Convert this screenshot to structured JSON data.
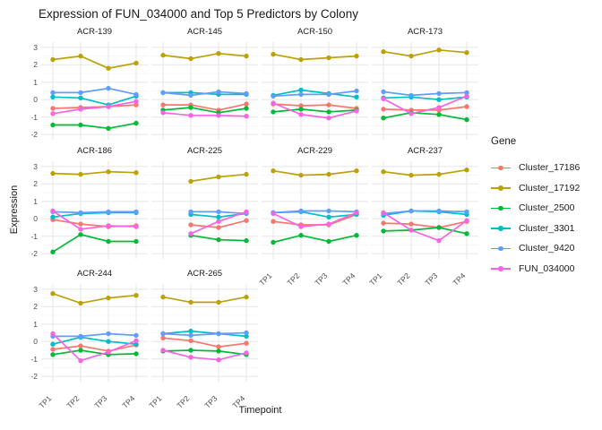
{
  "chart_data": {
    "type": "line",
    "title": "Expression of FUN_034000 and Top 5 Predictors by Colony",
    "xlabel": "Timepoint",
    "ylabel": "Expression",
    "legend_title": "Gene",
    "x": [
      "TP1",
      "TP2",
      "TP3",
      "TP4"
    ],
    "yticks": [
      3,
      2,
      1,
      0,
      -1,
      -2
    ],
    "ylim": [
      -2.3,
      3.3
    ],
    "grid": true,
    "legend_position": "right",
    "series_meta": [
      {
        "name": "Cluster_17186",
        "color": "#F8766D"
      },
      {
        "name": "Cluster_17192",
        "color": "#BCA20A"
      },
      {
        "name": "Cluster_2500",
        "color": "#00BA38"
      },
      {
        "name": "Cluster_3301",
        "color": "#00BFC4"
      },
      {
        "name": "Cluster_9420",
        "color": "#619CFF"
      },
      {
        "name": "FUN_034000",
        "color": "#F564E3"
      }
    ],
    "facets": [
      {
        "colony": "ACR-139",
        "series": {
          "Cluster_17186": [
            -0.5,
            -0.45,
            -0.4,
            -0.3
          ],
          "Cluster_17192": [
            2.3,
            2.5,
            1.8,
            2.1
          ],
          "Cluster_2500": [
            -1.45,
            -1.45,
            -1.65,
            -1.35
          ],
          "Cluster_3301": [
            0.15,
            0.1,
            -0.3,
            0.2
          ],
          "Cluster_9420": [
            0.4,
            0.4,
            0.65,
            0.3
          ],
          "FUN_034000": [
            -0.8,
            -0.55,
            -0.4,
            -0.1
          ]
        }
      },
      {
        "colony": "ACR-145",
        "series": {
          "Cluster_17186": [
            -0.3,
            -0.3,
            -0.6,
            -0.25
          ],
          "Cluster_17192": [
            2.55,
            2.35,
            2.65,
            2.5
          ],
          "Cluster_2500": [
            -0.6,
            -0.45,
            -0.75,
            -0.5
          ],
          "Cluster_3301": [
            0.4,
            0.4,
            0.3,
            0.3
          ],
          "Cluster_9420": [
            0.4,
            0.25,
            0.45,
            0.35
          ],
          "FUN_034000": [
            -0.75,
            -0.9,
            -0.9,
            -0.95
          ]
        }
      },
      {
        "colony": "ACR-150",
        "series": {
          "Cluster_17186": [
            -0.25,
            -0.35,
            -0.3,
            -0.5
          ],
          "Cluster_17192": [
            2.6,
            2.3,
            2.4,
            2.5
          ],
          "Cluster_2500": [
            -0.7,
            -0.55,
            -0.7,
            -0.6
          ],
          "Cluster_3301": [
            0.25,
            0.55,
            0.35,
            0.15
          ],
          "Cluster_9420": [
            0.2,
            0.3,
            0.3,
            0.5
          ],
          "FUN_034000": [
            -0.2,
            -0.85,
            -1.05,
            -0.65
          ]
        }
      },
      {
        "colony": "ACR-173",
        "series": {
          "Cluster_17186": [
            -0.55,
            -0.6,
            -0.6,
            -0.4
          ],
          "Cluster_17192": [
            2.75,
            2.5,
            2.85,
            2.7
          ],
          "Cluster_2500": [
            -1.05,
            -0.75,
            -0.85,
            -1.15
          ],
          "Cluster_3301": [
            0.1,
            0.15,
            0.0,
            0.15
          ],
          "Cluster_9420": [
            0.45,
            0.25,
            0.35,
            0.4
          ],
          "FUN_034000": [
            0.05,
            -0.8,
            -0.45,
            0.2
          ]
        }
      },
      {
        "colony": "ACR-186",
        "series": {
          "Cluster_17186": [
            -0.05,
            -0.3,
            -0.45,
            -0.4
          ],
          "Cluster_17192": [
            2.6,
            2.55,
            2.7,
            2.65
          ],
          "Cluster_2500": [
            -1.9,
            -0.9,
            -1.3,
            -1.3
          ],
          "Cluster_3301": [
            0.1,
            0.3,
            0.35,
            0.35
          ],
          "Cluster_9420": [
            0.4,
            0.35,
            0.4,
            0.4
          ],
          "FUN_034000": [
            0.45,
            -0.6,
            -0.4,
            -0.45
          ]
        }
      },
      {
        "colony": "ACR-225",
        "series": {
          "Cluster_17186": [
            null,
            -0.35,
            -0.5,
            -0.1
          ],
          "Cluster_17192": [
            null,
            2.15,
            2.4,
            2.55
          ],
          "Cluster_2500": [
            null,
            -0.95,
            -1.2,
            -1.25
          ],
          "Cluster_3301": [
            null,
            0.25,
            0.1,
            0.3
          ],
          "Cluster_9420": [
            null,
            0.4,
            0.4,
            0.3
          ],
          "FUN_034000": [
            null,
            -0.85,
            -0.15,
            0.4
          ]
        }
      },
      {
        "colony": "ACR-229",
        "series": {
          "Cluster_17186": [
            -0.15,
            -0.35,
            -0.35,
            0.25
          ],
          "Cluster_17192": [
            2.75,
            2.5,
            2.55,
            2.75
          ],
          "Cluster_2500": [
            -1.35,
            -0.95,
            -1.3,
            -0.95
          ],
          "Cluster_3301": [
            0.35,
            0.4,
            0.1,
            0.25
          ],
          "Cluster_9420": [
            0.35,
            0.45,
            0.45,
            0.4
          ],
          "FUN_034000": [
            0.3,
            -0.45,
            -0.3,
            0.35
          ]
        }
      },
      {
        "colony": "ACR-237",
        "series": {
          "Cluster_17186": [
            -0.25,
            -0.3,
            -0.5,
            -0.15
          ],
          "Cluster_17192": [
            2.7,
            2.5,
            2.55,
            2.8
          ],
          "Cluster_2500": [
            -0.7,
            -0.65,
            -0.5,
            -0.85
          ],
          "Cluster_3301": [
            0.2,
            0.45,
            0.4,
            0.25
          ],
          "Cluster_9420": [
            0.3,
            0.45,
            0.45,
            0.4
          ],
          "FUN_034000": [
            0.35,
            -0.65,
            -1.25,
            -0.1
          ]
        }
      },
      {
        "colony": "ACR-244",
        "series": {
          "Cluster_17186": [
            -0.45,
            -0.25,
            -0.55,
            -0.2
          ],
          "Cluster_17192": [
            2.75,
            2.2,
            2.5,
            2.65
          ],
          "Cluster_2500": [
            -0.75,
            -0.5,
            -0.75,
            -0.7
          ],
          "Cluster_3301": [
            -0.15,
            0.25,
            0.0,
            -0.15
          ],
          "Cluster_9420": [
            0.3,
            0.3,
            0.45,
            0.35
          ],
          "FUN_034000": [
            0.45,
            -1.1,
            -0.6,
            0.05
          ]
        }
      },
      {
        "colony": "ACR-265",
        "series": {
          "Cluster_17186": [
            0.2,
            0.05,
            -0.3,
            -0.1
          ],
          "Cluster_17192": [
            2.55,
            2.25,
            2.25,
            2.55
          ],
          "Cluster_2500": [
            -0.55,
            -0.5,
            -0.55,
            -0.75
          ],
          "Cluster_3301": [
            0.45,
            0.6,
            0.45,
            0.3
          ],
          "Cluster_9420": [
            0.45,
            0.35,
            0.45,
            0.5
          ],
          "FUN_034000": [
            -0.5,
            -0.9,
            -1.05,
            -0.65
          ]
        }
      }
    ],
    "style": {
      "grid_major_color": "#E8E8E8",
      "grid_minor_color": "#F4F4F4",
      "background": "#FFFFFF"
    }
  }
}
